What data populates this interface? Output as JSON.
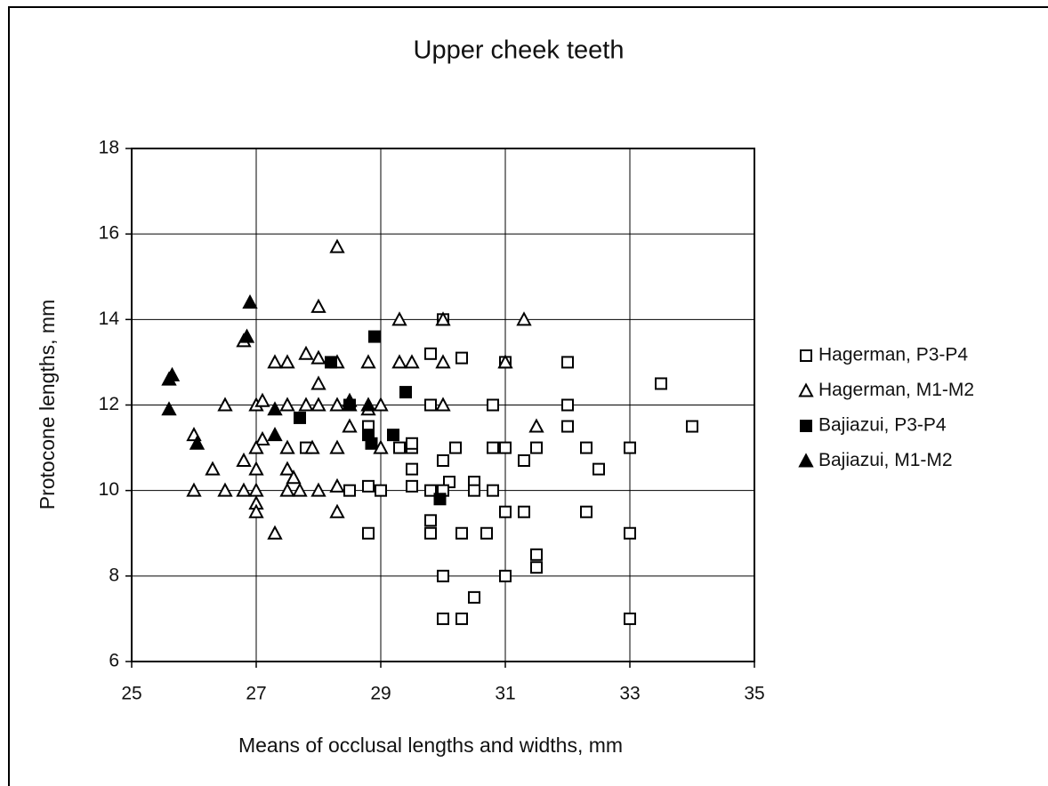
{
  "chart_data": {
    "type": "scatter",
    "title": "Upper cheek teeth",
    "xlabel": "Means of occlusal lengths and widths, mm",
    "ylabel": "Protocone lengths, mm",
    "xlim": [
      25,
      35
    ],
    "xticks": [
      25,
      27,
      29,
      31,
      33,
      35
    ],
    "ylim": [
      6,
      18
    ],
    "yticks": [
      6,
      8,
      10,
      12,
      14,
      16,
      18
    ],
    "grid": true,
    "legend": "right",
    "series": [
      {
        "name": "Hagerman, P3-P4",
        "color": "#000000",
        "marker": "square",
        "filled": false,
        "x": [
          29.8,
          30.3,
          31,
          32,
          33.5,
          29.8,
          30.8,
          32,
          34,
          32,
          28.8,
          29.3,
          29.5,
          29.5,
          30.2,
          30.8,
          31,
          31.5,
          32.3,
          33,
          27.8,
          31.3,
          30,
          32.5,
          29.5,
          30.1,
          30.5,
          28.5,
          29,
          29.5,
          29.8,
          30,
          30.5,
          30.8,
          28.8,
          31,
          31.3,
          32.3,
          29.8,
          29.8,
          28.8,
          30.3,
          30.7,
          33,
          31.5,
          31.5,
          30,
          31,
          30.5,
          30,
          30.3,
          33,
          30
        ],
        "values": [
          13.2,
          13.1,
          13,
          13,
          12.5,
          12,
          12,
          12,
          11.5,
          11.5,
          11.5,
          11,
          11,
          11.1,
          11,
          11,
          11,
          11,
          11,
          11,
          11,
          10.7,
          10.7,
          10.5,
          10.5,
          10.2,
          10.2,
          10,
          10,
          10.1,
          10,
          10,
          10,
          10,
          10.1,
          9.5,
          9.5,
          9.5,
          9.3,
          9,
          9,
          9,
          9,
          9,
          8.5,
          8.2,
          8,
          8,
          7.5,
          7,
          7,
          7,
          14
        ]
      },
      {
        "name": "Hagerman, M1-M2",
        "color": "#000000",
        "marker": "triangle",
        "filled": false,
        "x": [
          28.3,
          28,
          29.3,
          30,
          31.3,
          27.8,
          28,
          27.3,
          27.5,
          28.3,
          28.8,
          29.3,
          29.5,
          30,
          31,
          26.8,
          28,
          26.5,
          27,
          27.1,
          27.5,
          27.8,
          28,
          28.3,
          28.5,
          28.8,
          29,
          30,
          26,
          27.1,
          27,
          27.5,
          27.9,
          28.3,
          28.5,
          29,
          26.3,
          26.8,
          27,
          27.5,
          27.6,
          26,
          26.5,
          26.8,
          27,
          27,
          27,
          27.5,
          27.7,
          28,
          28.3,
          27.3,
          28.3,
          31.5
        ],
        "values": [
          15.7,
          14.3,
          14,
          14,
          14,
          13.2,
          13.1,
          13,
          13,
          13,
          13,
          13,
          13,
          13,
          13,
          13.5,
          12.5,
          12,
          12,
          12.1,
          12,
          12,
          12,
          12,
          12,
          11.9,
          12,
          12,
          11.3,
          11.2,
          11,
          11,
          11,
          11,
          11.5,
          11,
          10.5,
          10.7,
          10.5,
          10.5,
          10.3,
          10,
          10,
          10,
          10,
          9.7,
          9.5,
          10,
          10,
          10,
          10.1,
          9,
          9.5,
          11.5
        ]
      },
      {
        "name": "Bajiazui, P3-P4",
        "color": "#000000",
        "marker": "square",
        "filled": true,
        "x": [
          28.9,
          28.2,
          29.4,
          28.5,
          27.7,
          28.8,
          28.85,
          29.2,
          29.95
        ],
        "values": [
          13.6,
          13,
          12.3,
          12,
          11.7,
          11.3,
          11.1,
          11.3,
          9.8
        ]
      },
      {
        "name": "Bajiazui, M1-M2",
        "color": "#000000",
        "marker": "triangle",
        "filled": true,
        "x": [
          26.9,
          26.85,
          25.6,
          25.65,
          25.6,
          26.05,
          27.3,
          27.3,
          28.5,
          28.8
        ],
        "values": [
          14.4,
          13.6,
          12.6,
          12.7,
          11.9,
          11.1,
          11.9,
          11.3,
          12.1,
          12
        ]
      }
    ]
  }
}
